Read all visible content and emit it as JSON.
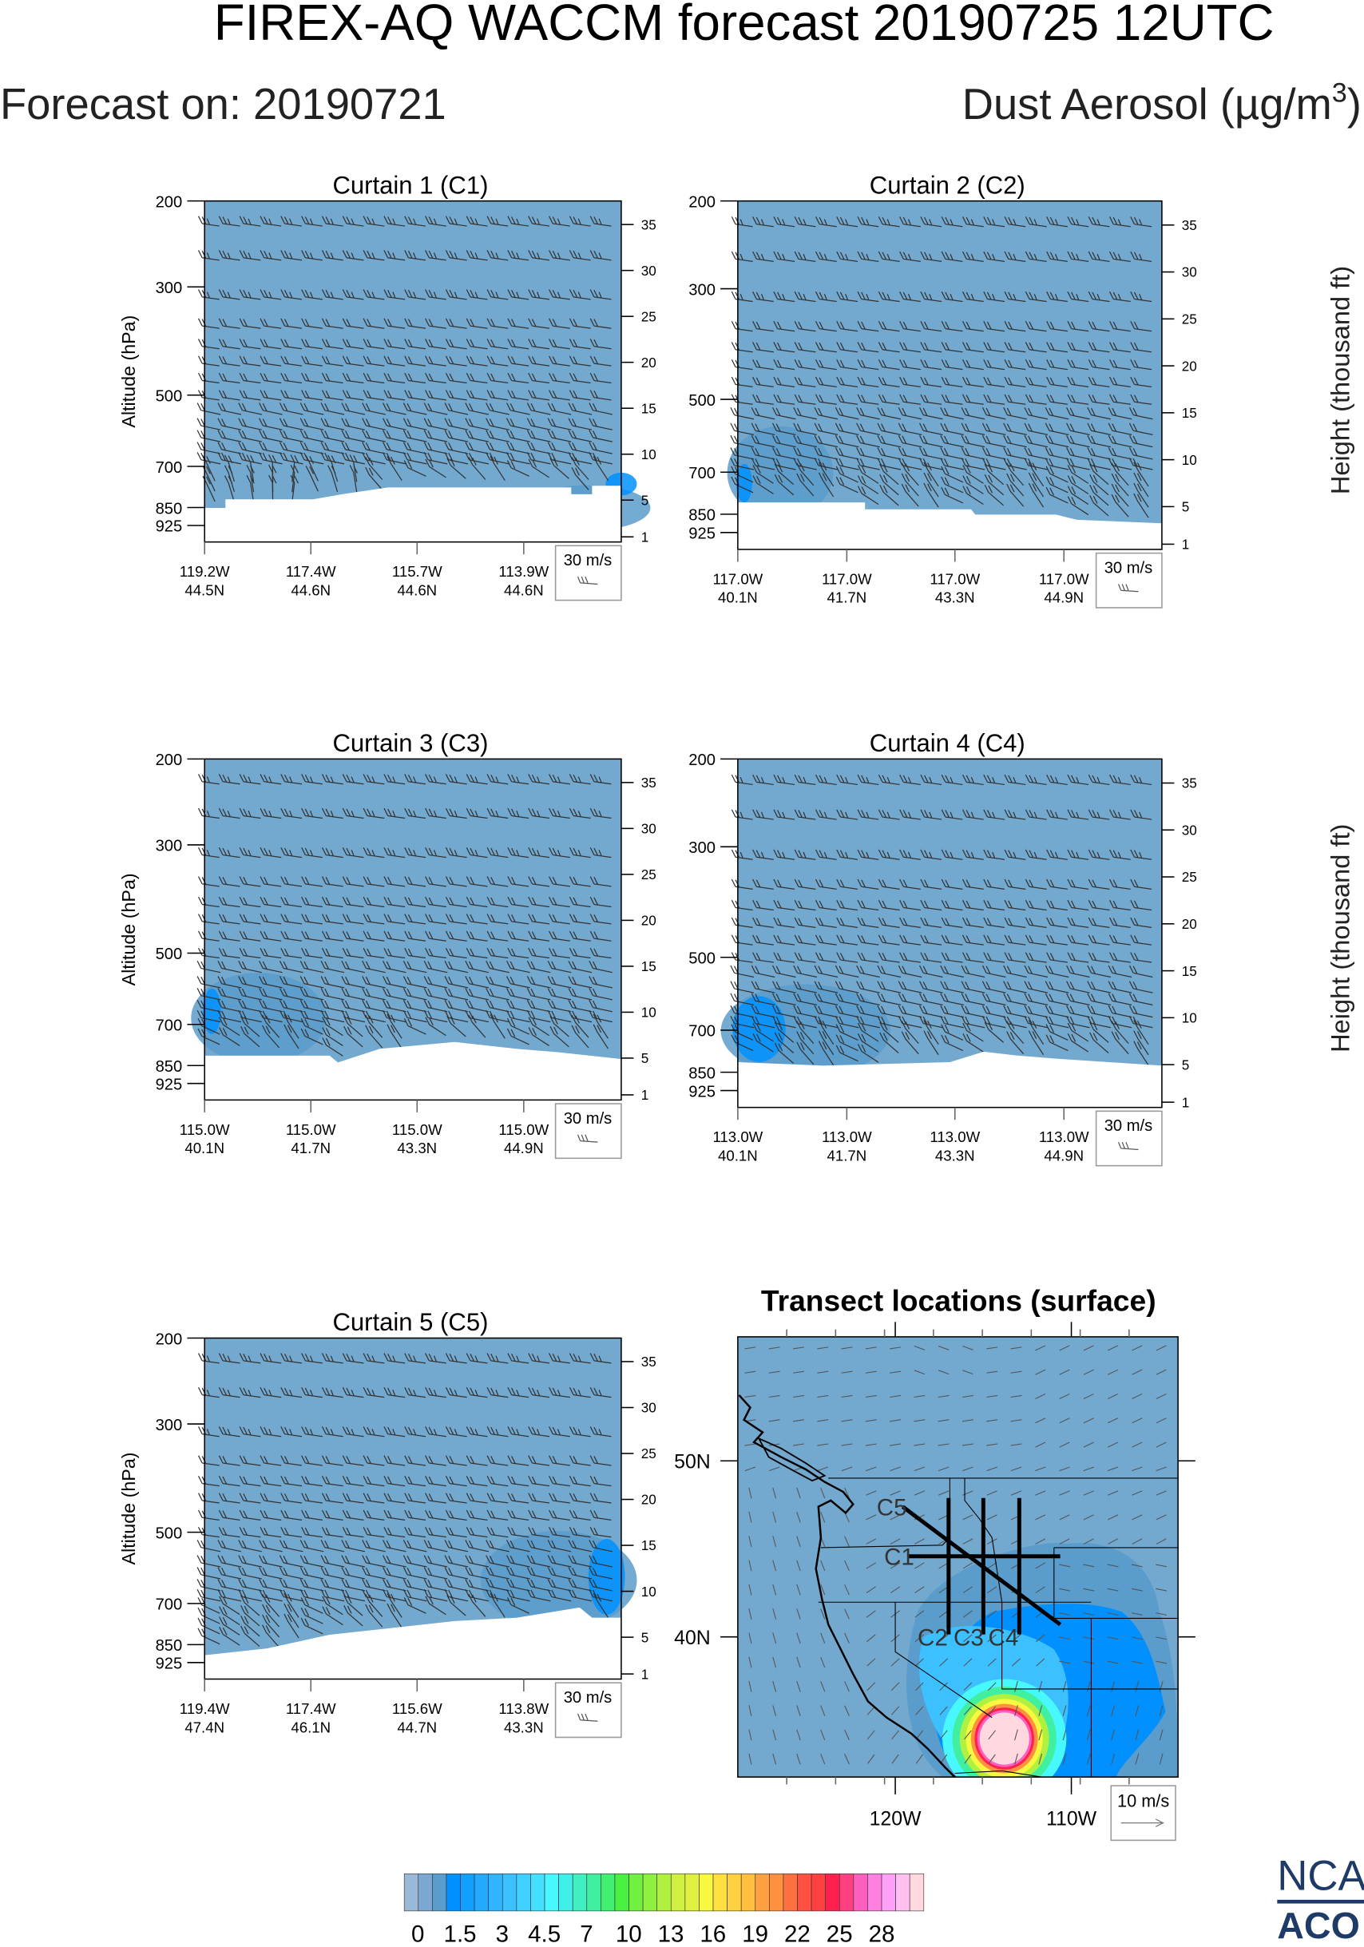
{
  "header": {
    "title": "FIREX-AQ WACCM forecast 20190725 12UTC",
    "forecast_on": "Forecast on: 20190721",
    "variable_label": "Dust Aerosol (µg/m",
    "variable_sup": "3",
    "variable_close": ")"
  },
  "colors": {
    "background_field": "#74a9cf",
    "terrain": "#ffffff",
    "barb": "#333333",
    "logo": "#1e3a66"
  },
  "chart_data": [
    {
      "type": "heatmap",
      "title": "Curtain 1 (C1)",
      "ylabel": "Altitude (hPa)",
      "y_ticks": [
        "200",
        "300",
        "500",
        "700",
        "850",
        "925"
      ],
      "y2_ticks": [
        "35",
        "30",
        "25",
        "20",
        "15",
        "10",
        "5",
        "1"
      ],
      "y2label": "",
      "x_ticks": [
        [
          "119.2W",
          "44.5N"
        ],
        [
          "117.4W",
          "44.6N"
        ],
        [
          "115.7W",
          "44.6N"
        ],
        [
          "113.9W",
          "44.6N"
        ]
      ],
      "wind_legend": "30 m/s",
      "dominant_dust_bin": "0-1.5"
    },
    {
      "type": "heatmap",
      "title": "Curtain 2 (C2)",
      "ylabel": "",
      "y_ticks": [
        "200",
        "300",
        "500",
        "700",
        "850",
        "925"
      ],
      "y2_ticks": [
        "35",
        "30",
        "25",
        "20",
        "15",
        "10",
        "5",
        "1"
      ],
      "y2label": "Height (thousand ft)",
      "x_ticks": [
        [
          "117.0W",
          "40.1N"
        ],
        [
          "117.0W",
          "41.7N"
        ],
        [
          "117.0W",
          "43.3N"
        ],
        [
          "117.0W",
          "44.9N"
        ]
      ],
      "wind_legend": "30 m/s",
      "dominant_dust_bin": "0-1.5"
    },
    {
      "type": "heatmap",
      "title": "Curtain 3 (C3)",
      "ylabel": "Altitude (hPa)",
      "y_ticks": [
        "200",
        "300",
        "500",
        "700",
        "850",
        "925"
      ],
      "y2_ticks": [
        "35",
        "30",
        "25",
        "20",
        "15",
        "10",
        "5",
        "1"
      ],
      "y2label": "",
      "x_ticks": [
        [
          "115.0W",
          "40.1N"
        ],
        [
          "115.0W",
          "41.7N"
        ],
        [
          "115.0W",
          "43.3N"
        ],
        [
          "115.0W",
          "44.9N"
        ]
      ],
      "wind_legend": "30 m/s",
      "dominant_dust_bin": "0-1.5"
    },
    {
      "type": "heatmap",
      "title": "Curtain 4 (C4)",
      "ylabel": "",
      "y_ticks": [
        "200",
        "300",
        "500",
        "700",
        "850",
        "925"
      ],
      "y2_ticks": [
        "35",
        "30",
        "25",
        "20",
        "15",
        "10",
        "5",
        "1"
      ],
      "y2label": "Height (thousand ft)",
      "x_ticks": [
        [
          "113.0W",
          "40.1N"
        ],
        [
          "113.0W",
          "41.7N"
        ],
        [
          "113.0W",
          "43.3N"
        ],
        [
          "113.0W",
          "44.9N"
        ]
      ],
      "wind_legend": "30 m/s",
      "dominant_dust_bin": "0-1.5"
    },
    {
      "type": "heatmap",
      "title": "Curtain 5 (C5)",
      "ylabel": "Altitude (hPa)",
      "y_ticks": [
        "200",
        "300",
        "500",
        "700",
        "850",
        "925"
      ],
      "y2_ticks": [
        "35",
        "30",
        "25",
        "20",
        "15",
        "10",
        "5",
        "1"
      ],
      "y2label": "",
      "x_ticks": [
        [
          "119.4W",
          "47.4N"
        ],
        [
          "117.4W",
          "46.1N"
        ],
        [
          "115.6W",
          "44.7N"
        ],
        [
          "113.8W",
          "43.3N"
        ]
      ],
      "wind_legend": "30 m/s",
      "dominant_dust_bin": "0-1.5"
    },
    {
      "type": "map",
      "title": "Transect locations (surface)",
      "lon_ticks": [
        "120W",
        "110W"
      ],
      "lat_ticks": [
        "50N",
        "40N"
      ],
      "transects": [
        "C5",
        "C1",
        "C2",
        "C3",
        "C4"
      ],
      "vector_legend": "10 m/s",
      "max_dust_bin": "28+"
    }
  ],
  "colorbar": {
    "labels": [
      "0",
      "1.5",
      "3",
      "4.5",
      "7",
      "10",
      "13",
      "16",
      "19",
      "22",
      "25",
      "28"
    ],
    "colors": [
      "#9ab8d8",
      "#7aa8d0",
      "#5a9ccb",
      "#0090ff",
      "#10a0ff",
      "#22aaff",
      "#30b4ff",
      "#3cc0ff",
      "#40d0ff",
      "#44e0ff",
      "#48f8ff",
      "#40f0e8",
      "#40f0c0",
      "#40f0a0",
      "#40f070",
      "#48f040",
      "#70f040",
      "#90f040",
      "#b0f040",
      "#d0f040",
      "#e0f040",
      "#f8f840",
      "#ffe040",
      "#ffd040",
      "#ffc040",
      "#ffa040",
      "#ff9040",
      "#ff7040",
      "#ff5040",
      "#ff4040",
      "#ff2050",
      "#ff4080",
      "#ff60c0",
      "#ff80e0",
      "#ffa0f8",
      "#ffc0f0",
      "#ffd8e0"
    ]
  },
  "logo": {
    "line1": "NCA",
    "line2": "ACO"
  }
}
